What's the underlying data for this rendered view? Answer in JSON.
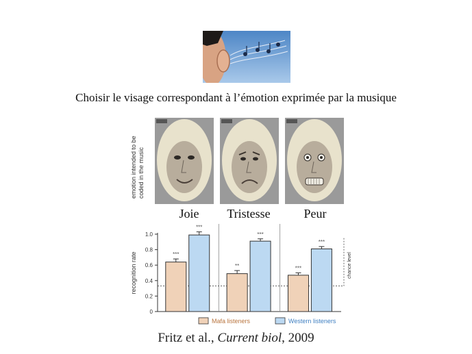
{
  "instruction": "Choisir le visage correspondant à l’émotion exprimée par la musique",
  "faces": {
    "axis_label_line1": "emotion intended to be",
    "axis_label_line2": "coded in the music",
    "labels": [
      "Joie",
      "Tristesse",
      "Peur"
    ]
  },
  "citation": {
    "authors": "Fritz et al., ",
    "journal": "Current biol",
    "year": ", 2009"
  },
  "chart_data": {
    "type": "bar",
    "categories": [
      "Joie",
      "Tristesse",
      "Peur"
    ],
    "series": [
      {
        "name": "Mafa listeners",
        "values": [
          0.64,
          0.49,
          0.47
        ],
        "errors": [
          0.04,
          0.04,
          0.03
        ],
        "significance": [
          "***",
          "**",
          "***"
        ],
        "color": "#f0d2b8"
      },
      {
        "name": "Western listeners",
        "values": [
          0.99,
          0.91,
          0.81
        ],
        "errors": [
          0.04,
          0.03,
          0.03
        ],
        "significance": [
          "***",
          "***",
          "***"
        ],
        "color": "#bcd9f2"
      }
    ],
    "ylabel": "recognition rate",
    "ylim": [
      0,
      1.0
    ],
    "yticks": [
      "0",
      "0.2",
      "0.4",
      "0.6",
      "0.8",
      "1.0"
    ],
    "chance_level": 0.33,
    "chance_label": "chance level",
    "legend": "bottom"
  }
}
